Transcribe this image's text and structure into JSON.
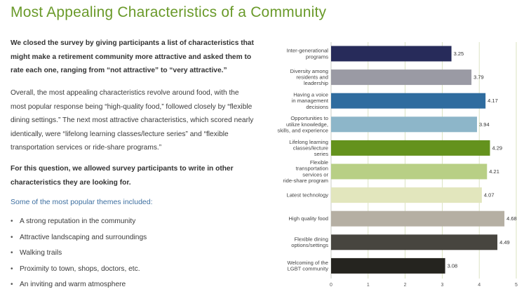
{
  "title": "Most Appealing Characteristics of a Community",
  "intro_bold": "We closed the survey by giving participants a list of characteristics that might make a retirement community more attractive and asked them to rate each one, ranging from “not attractive” to “very attractive.”",
  "overview": "Overall, the most appealing characteristics revolve around food, with the most popular response being “high-quality food,” followed closely by “flexible dining settings.” The next most attractive characteristics, which scored nearly identically, were “lifelong learning classes/lecture series” and “flexible transportation services or ride-share programs.”",
  "write_in_bold": "For this question, we allowed survey participants to write in other characteristics they are looking for.",
  "themes_heading": "Some of the most popular themes included:",
  "themes": [
    "A strong reputation in the community",
    "Attractive landscaping and surroundings",
    "Walking trails",
    "Proximity to town, shops, doctors, etc.",
    "An inviting and warm atmosphere"
  ],
  "chart_data": {
    "type": "bar",
    "orientation": "horizontal",
    "title": "",
    "xlabel": "",
    "ylabel": "",
    "xlim": [
      0,
      5
    ],
    "xticks": [
      0,
      1,
      2,
      3,
      4,
      5
    ],
    "grid": true,
    "categories": [
      [
        "Inter-generational",
        "programs"
      ],
      [
        "Diversity among",
        "residents and",
        "leadership"
      ],
      [
        "Having a voice",
        "in management",
        "decisions"
      ],
      [
        "Opportunities to",
        "utilize knowledge,",
        "skills, and experience"
      ],
      [
        "Lifelong learning",
        "classes/lecture",
        "series"
      ],
      [
        "Flexible",
        "transportation",
        "services or",
        "ride-share program"
      ],
      [
        "Latest technology"
      ],
      [
        "High quality food"
      ],
      [
        "Flexible dining",
        "options/settings"
      ],
      [
        "Welcoming of the",
        "LGBT community"
      ]
    ],
    "values": [
      3.25,
      3.79,
      4.17,
      3.94,
      4.29,
      4.21,
      4.07,
      4.68,
      4.49,
      3.08
    ],
    "value_labels": [
      "3.25",
      "3.79",
      "4.17",
      "3.94",
      "4.29",
      "4.21",
      "4.07",
      "4.68",
      "4.49",
      "3.08"
    ],
    "colors": [
      "#272b5a",
      "#9a9aa4",
      "#2f6c9f",
      "#8db6c9",
      "#64921d",
      "#b8cf85",
      "#e2e6bd",
      "#b5afa3",
      "#47453f",
      "#25241f"
    ]
  }
}
